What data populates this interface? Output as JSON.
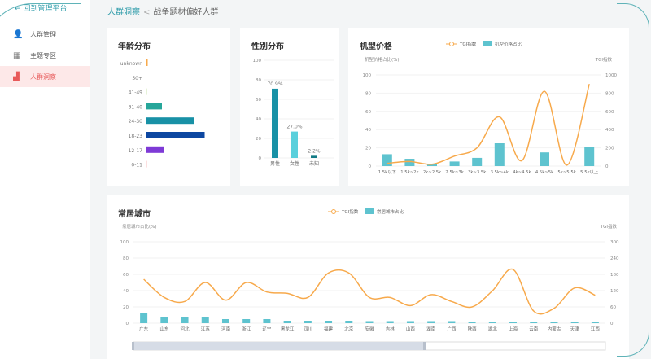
{
  "sidebar": {
    "back_label": "回到管理平台",
    "items": [
      {
        "label": "人群管理",
        "icon": "user-add-icon"
      },
      {
        "label": "主题专区",
        "icon": "grid-icon"
      },
      {
        "label": "人群洞察",
        "icon": "bar-chart-icon",
        "active": true
      }
    ]
  },
  "breadcrumb": {
    "parent": "人群洞察",
    "separator": "<",
    "current": "战争题材偏好人群"
  },
  "colors": {
    "accent": "#2a9aa8",
    "bar": "#5ec3cf",
    "line": "#f7a94b",
    "active": "#e85a5a"
  },
  "chart_data": [
    {
      "type": "bar",
      "title": "年龄分布",
      "orientation": "horizontal",
      "categories": [
        "unknown",
        "50+",
        "41-49",
        "31-40",
        "24-30",
        "18-23",
        "12-17",
        "0-11"
      ],
      "values": [
        1,
        0.3,
        0.5,
        8,
        24,
        29,
        9,
        0.5
      ],
      "colors": [
        "#f7a94b",
        "#f5e0b0",
        "#9ccc65",
        "#26a69a",
        "#1891a6",
        "#0d47a1",
        "#7e3ad6",
        "#f48080"
      ]
    },
    {
      "type": "bar",
      "title": "性别分布",
      "categories": [
        "男性",
        "女性",
        "未知"
      ],
      "values": [
        70.9,
        27.0,
        2.2
      ],
      "labels": [
        "70.9%",
        "27.0%",
        "2.2%"
      ],
      "ylim": [
        0,
        100
      ],
      "yticks": [
        0,
        20,
        40,
        60,
        80,
        100
      ],
      "colors": [
        "#1891a6",
        "#5ad0dc",
        "#127a85"
      ]
    },
    {
      "type": "bar+line",
      "title": "机型价格",
      "ylabel": "机型价格占比(%)",
      "y2label": "TGI指数",
      "legend": [
        "TGI指数",
        "机型价格占比"
      ],
      "legend_position": "top",
      "categories": [
        "1.5k以下",
        "1.5k~2k",
        "2k~2.5k",
        "2.5k~3k",
        "3k~3.5k",
        "3.5k~4k",
        "4k~4.5k",
        "4.5k~5k",
        "5k~5.5k",
        "5.5k以上"
      ],
      "bar_values": [
        13,
        8,
        2,
        5,
        9,
        25,
        0,
        15,
        0,
        21
      ],
      "tgi": [
        30,
        50,
        20,
        110,
        200,
        540,
        60,
        820,
        10,
        900
      ],
      "ylim": [
        0,
        100
      ],
      "yticks": [
        0,
        20,
        40,
        60,
        80,
        100
      ],
      "y2lim": [
        0,
        1000
      ],
      "y2ticks": [
        0,
        200,
        400,
        600,
        800,
        1000
      ]
    },
    {
      "type": "bar+line",
      "title": "常居城市",
      "ylabel": "常居城市占比(%)",
      "y2label": "TGI指数",
      "legend": [
        "TGI指数",
        "常居城市占比"
      ],
      "legend_position": "top",
      "categories": [
        "广东",
        "山东",
        "河北",
        "江苏",
        "河南",
        "浙江",
        "辽宁",
        "黑龙江",
        "四川",
        "福建",
        "北京",
        "安徽",
        "吉林",
        "山西",
        "湖南",
        "广西",
        "陕西",
        "湖北",
        "上海",
        "云南",
        "内蒙古",
        "天津",
        "江西"
      ],
      "bar_values": [
        12,
        8,
        7,
        7,
        5,
        5,
        5,
        3,
        3,
        3,
        3,
        2.5,
        2.5,
        2.5,
        2.5,
        2.5,
        2,
        2,
        2,
        2,
        2,
        2,
        2
      ],
      "tgi": [
        162,
        95,
        80,
        150,
        85,
        150,
        115,
        110,
        95,
        185,
        185,
        95,
        95,
        65,
        105,
        80,
        60,
        120,
        198,
        45,
        55,
        130,
        103
      ],
      "ylim": [
        0,
        100
      ],
      "yticks": [
        0,
        20,
        40,
        60,
        80,
        100
      ],
      "y2lim": [
        0,
        300
      ],
      "y2ticks": [
        0,
        60,
        120,
        180,
        240,
        300
      ]
    }
  ]
}
